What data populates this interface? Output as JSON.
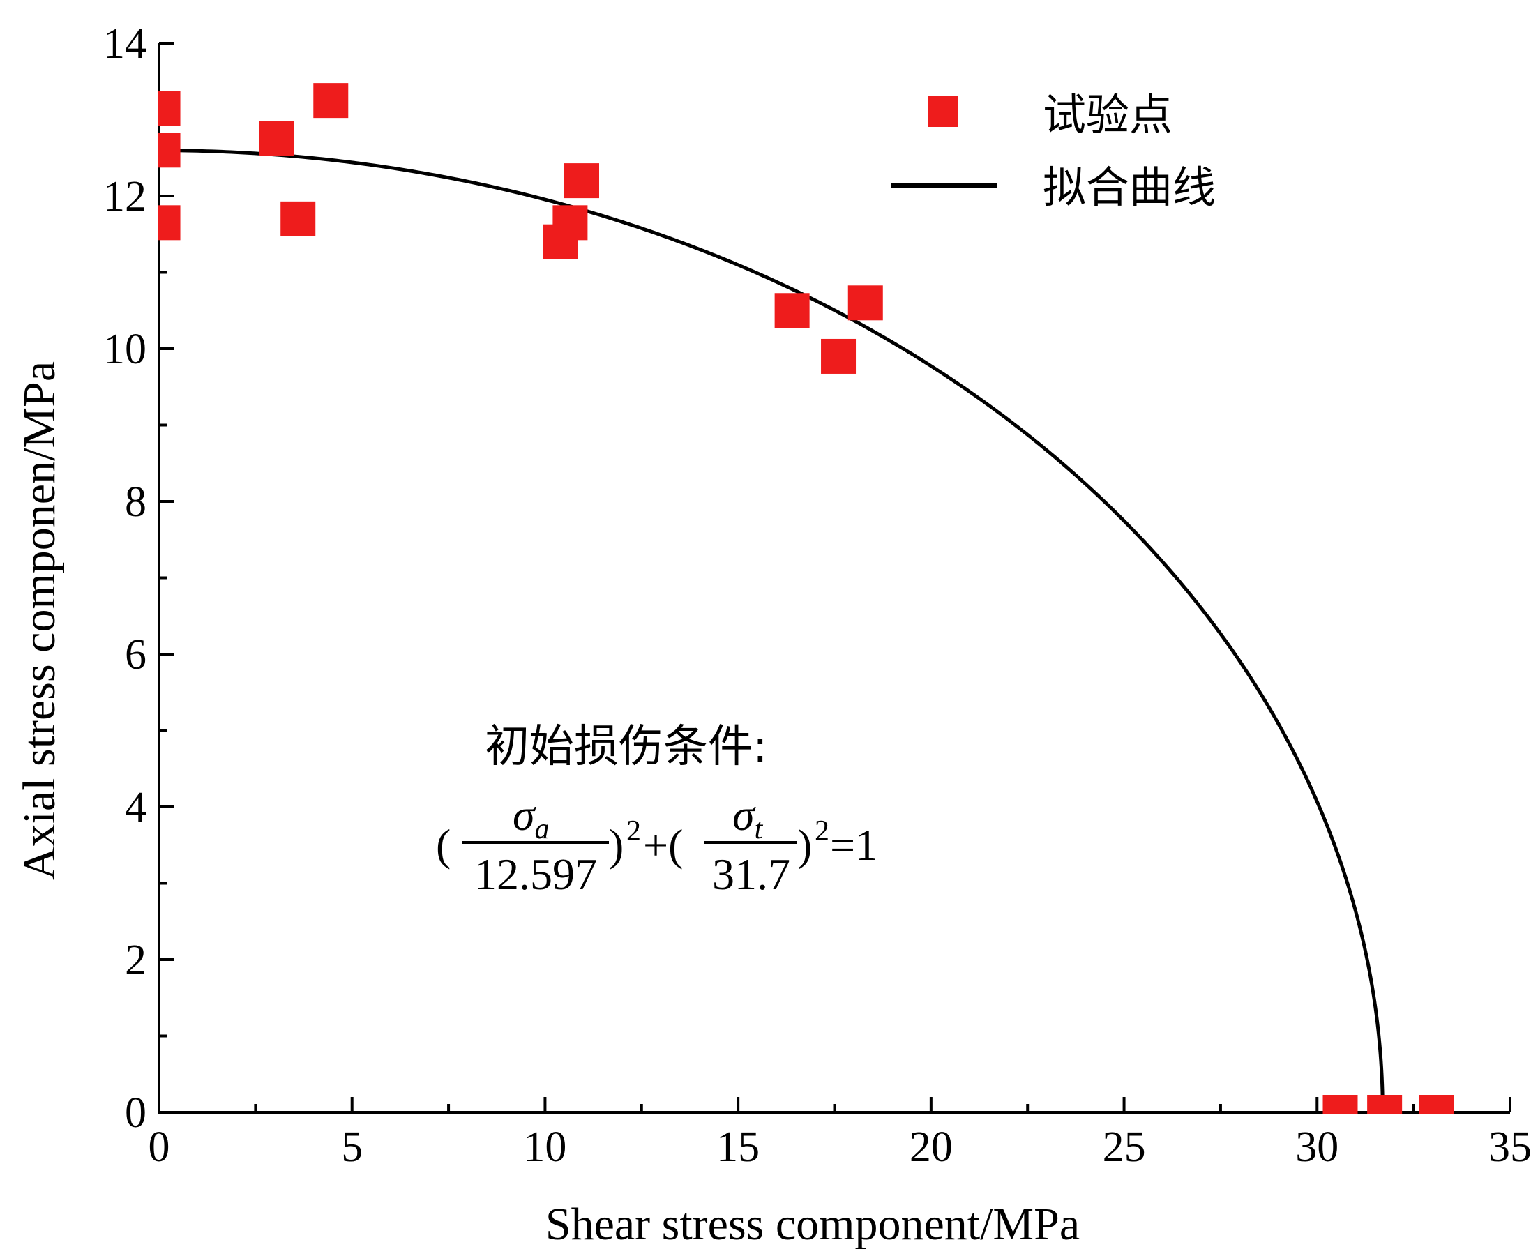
{
  "chart_data": {
    "type": "scatter",
    "xlabel": "Shear stress component/MPa",
    "ylabel": "Axial stress componen/MPa",
    "xlim": [
      0,
      35
    ],
    "ylim": [
      0,
      14
    ],
    "xticks": [
      0,
      5,
      10,
      15,
      20,
      25,
      30,
      35
    ],
    "yticks": [
      0,
      2,
      4,
      6,
      8,
      10,
      12,
      14
    ],
    "grid": false,
    "legend_position": "top-right",
    "series": [
      {
        "name": "试验点",
        "type": "scatter",
        "marker": "square",
        "color": "#ee1c1c",
        "points": [
          [
            0.1,
            13.15
          ],
          [
            0.1,
            12.6
          ],
          [
            0.1,
            11.65
          ],
          [
            3.05,
            12.75
          ],
          [
            3.6,
            11.7
          ],
          [
            4.45,
            13.25
          ],
          [
            10.4,
            11.4
          ],
          [
            10.65,
            11.65
          ],
          [
            10.95,
            12.2
          ],
          [
            16.4,
            10.5
          ],
          [
            17.6,
            9.9
          ],
          [
            18.3,
            10.6
          ],
          [
            30.6,
            0.0
          ],
          [
            31.75,
            0.0
          ],
          [
            33.1,
            0.0
          ]
        ]
      },
      {
        "name": "拟合曲线",
        "type": "line",
        "color": "#000000",
        "equation": {
          "a": 12.597,
          "t": 31.7
        }
      }
    ],
    "annotation": {
      "title": "初始损伤条件:",
      "formula": {
        "open1": "(",
        "num1": "σ",
        "num1_sub": "a",
        "den1": "12.597",
        "close1": ")",
        "exp1": "2",
        "plus": "+(",
        "num2": "σ",
        "num2_sub": "t",
        "den2": "31.7",
        "close2": ")",
        "exp2": "2",
        "equals": "=1"
      }
    }
  }
}
